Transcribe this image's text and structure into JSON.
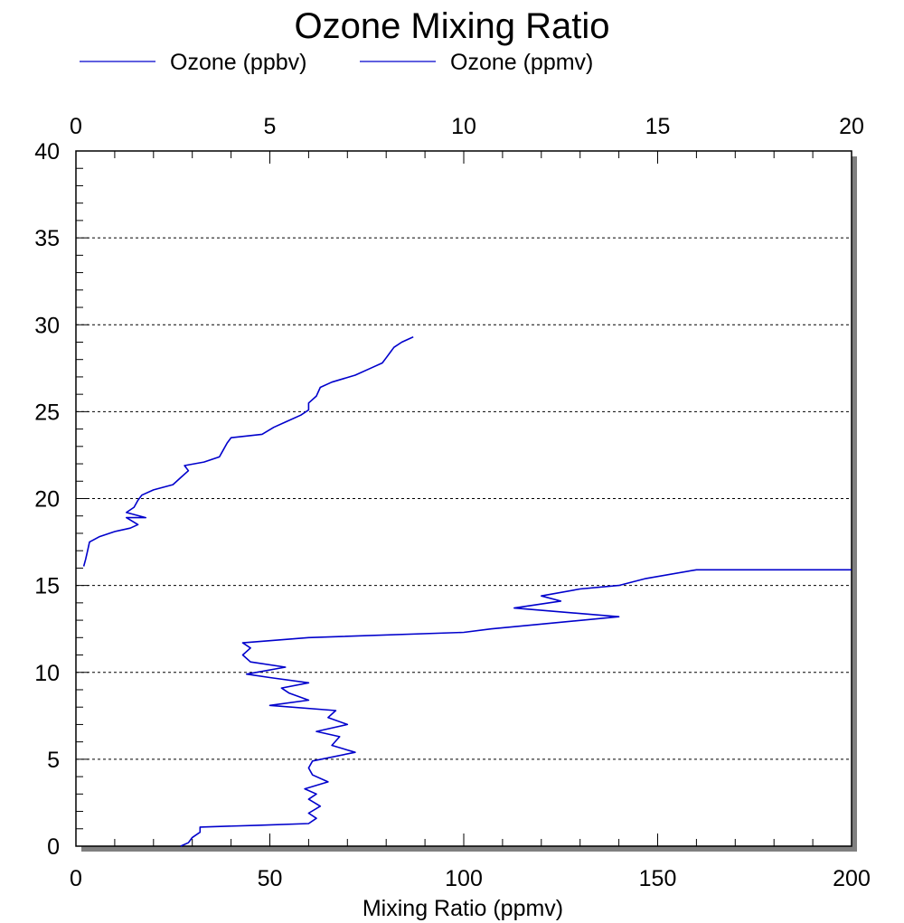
{
  "chart_data": {
    "type": "line",
    "title": "Ozone Mixing Ratio",
    "xlabel": "Mixing Ratio (ppmv)",
    "ylabel": "",
    "bottom_axis": {
      "lim": [
        0,
        200
      ],
      "ticks": [
        "0",
        "50",
        "100",
        "150",
        "200"
      ]
    },
    "top_axis": {
      "lim": [
        0,
        20
      ],
      "ticks": [
        "0",
        "5",
        "10",
        "15",
        "20"
      ]
    },
    "left_axis": {
      "lim": [
        0,
        40
      ],
      "ticks": [
        "0",
        "5",
        "10",
        "15",
        "20",
        "25",
        "30",
        "35",
        "40"
      ]
    },
    "grid": "horizontal-dotted",
    "legend": {
      "placement": "top-left",
      "entries": [
        {
          "label": "Ozone (ppbv)",
          "color": "#0000cc"
        },
        {
          "label": "Ozone (ppmv)",
          "color": "#0000cc"
        }
      ]
    },
    "series": [
      {
        "name": "Ozone (ppbv)",
        "color": "#0000cc",
        "axis": "bottom",
        "points": [
          [
            27,
            0
          ],
          [
            29,
            0.2
          ],
          [
            30,
            0.5
          ],
          [
            32,
            0.8
          ],
          [
            32,
            1.1
          ],
          [
            47,
            1.2
          ],
          [
            60,
            1.3
          ],
          [
            62,
            1.6
          ],
          [
            60,
            1.9
          ],
          [
            63,
            2.3
          ],
          [
            60,
            2.7
          ],
          [
            62,
            3.0
          ],
          [
            59,
            3.3
          ],
          [
            65,
            3.7
          ],
          [
            61,
            4.1
          ],
          [
            60,
            4.5
          ],
          [
            61,
            4.9
          ],
          [
            72,
            5.4
          ],
          [
            66,
            5.8
          ],
          [
            68,
            6.3
          ],
          [
            62,
            6.6
          ],
          [
            70,
            7.0
          ],
          [
            65,
            7.4
          ],
          [
            67,
            7.8
          ],
          [
            50,
            8.1
          ],
          [
            60,
            8.4
          ],
          [
            55,
            8.8
          ],
          [
            53,
            9.1
          ],
          [
            60,
            9.4
          ],
          [
            50,
            9.7
          ],
          [
            44,
            9.9
          ],
          [
            54,
            10.3
          ],
          [
            45,
            10.6
          ],
          [
            43,
            11.0
          ],
          [
            45,
            11.4
          ],
          [
            43,
            11.7
          ],
          [
            60,
            12.0
          ],
          [
            100,
            12.3
          ],
          [
            107,
            12.5
          ],
          [
            140,
            13.2
          ],
          [
            113,
            13.7
          ],
          [
            125,
            14.1
          ],
          [
            120,
            14.4
          ],
          [
            130,
            14.8
          ],
          [
            140,
            15.0
          ],
          [
            147,
            15.4
          ],
          [
            160,
            15.9
          ],
          [
            200,
            15.9
          ]
        ]
      },
      {
        "name": "Ozone (ppmv)",
        "color": "#0000cc",
        "axis": "top",
        "points": [
          [
            0.2,
            16.1
          ],
          [
            0.25,
            16.5
          ],
          [
            0.3,
            17.0
          ],
          [
            0.35,
            17.5
          ],
          [
            0.6,
            17.8
          ],
          [
            1.0,
            18.1
          ],
          [
            1.4,
            18.3
          ],
          [
            1.6,
            18.5
          ],
          [
            1.3,
            18.9
          ],
          [
            1.8,
            18.9
          ],
          [
            1.3,
            19.2
          ],
          [
            1.5,
            19.5
          ],
          [
            1.6,
            19.9
          ],
          [
            1.7,
            20.2
          ],
          [
            2.0,
            20.5
          ],
          [
            2.5,
            20.8
          ],
          [
            2.7,
            21.2
          ],
          [
            2.9,
            21.6
          ],
          [
            2.8,
            21.9
          ],
          [
            3.3,
            22.1
          ],
          [
            3.7,
            22.4
          ],
          [
            3.8,
            22.8
          ],
          [
            3.9,
            23.2
          ],
          [
            4.0,
            23.5
          ],
          [
            4.8,
            23.7
          ],
          [
            5.1,
            24.1
          ],
          [
            5.4,
            24.4
          ],
          [
            5.8,
            24.8
          ],
          [
            6.0,
            25.1
          ],
          [
            6.0,
            25.5
          ],
          [
            6.2,
            25.9
          ],
          [
            6.3,
            26.4
          ],
          [
            6.6,
            26.7
          ],
          [
            7.2,
            27.1
          ],
          [
            7.6,
            27.5
          ],
          [
            7.9,
            27.8
          ],
          [
            8.0,
            28.1
          ],
          [
            8.1,
            28.4
          ],
          [
            8.2,
            28.7
          ],
          [
            8.4,
            29.0
          ],
          [
            8.6,
            29.2
          ],
          [
            8.7,
            29.3
          ]
        ]
      }
    ]
  }
}
